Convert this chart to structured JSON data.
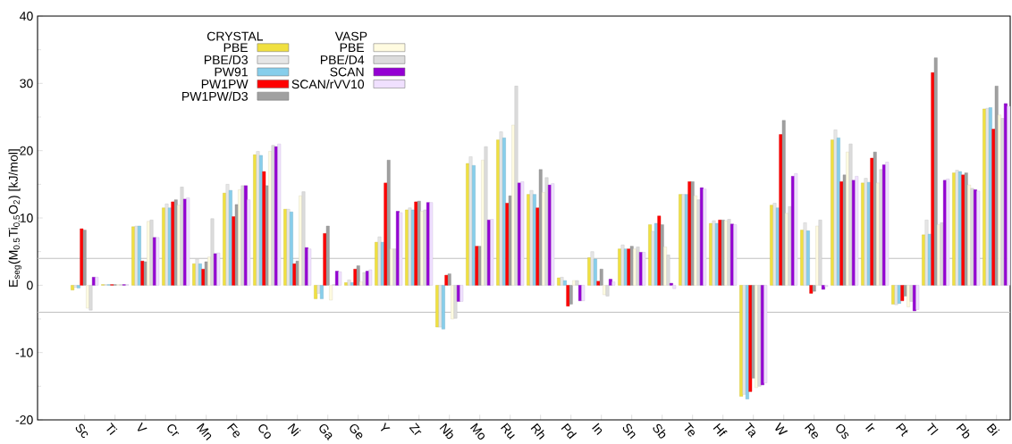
{
  "chart_data": {
    "type": "bar",
    "ylabel": "E$_{seg}$(M$_{0.5}$Ti$_{0.5}$O$_{2}$) [kJ/mol]",
    "categories": [
      "Sc",
      "Ti",
      "V",
      "Cr",
      "Mn",
      "Fe",
      "Co",
      "Ni",
      "Ga",
      "Ge",
      "Y",
      "Zr",
      "Nb",
      "Mo",
      "Ru",
      "Rh",
      "Pd",
      "In",
      "Sn",
      "Sb",
      "Te",
      "Hf",
      "Ta",
      "W",
      "Re",
      "Os",
      "Ir",
      "Pt",
      "Tl",
      "Pb",
      "Bi"
    ],
    "series": [
      {
        "name": "PBE",
        "color": "#f0e040",
        "values": [
          -0.7,
          0.1,
          8.7,
          11.5,
          3.2,
          13.7,
          19.4,
          11.3,
          -2.0,
          0.4,
          6.4,
          11.2,
          -6.2,
          18.1,
          21.6,
          13.5,
          1.1,
          4.1,
          5.4,
          9.0,
          13.5,
          9.2,
          -16.5,
          11.9,
          8.2,
          21.6,
          15.2,
          -2.8,
          7.5,
          16.7,
          26.2
        ]
      },
      {
        "name": "PBE/D3",
        "color": "#e6e6e6",
        "values": [
          -0.3,
          0.1,
          8.8,
          12.1,
          3.9,
          15.0,
          19.9,
          11.3,
          -1.2,
          0.8,
          7.2,
          11.5,
          -6.2,
          19.1,
          22.8,
          14.1,
          1.2,
          5.0,
          6.0,
          8.0,
          13.5,
          9.6,
          -16.2,
          12.2,
          9.3,
          23.1,
          15.9,
          -2.9,
          9.7,
          17.1,
          26.3
        ]
      },
      {
        "name": "PW91",
        "color": "#87ceeb",
        "values": [
          -0.4,
          0.1,
          8.8,
          11.5,
          3.2,
          14.1,
          19.3,
          10.9,
          -2.0,
          0.4,
          6.4,
          11.2,
          -6.5,
          17.8,
          21.9,
          13.5,
          0.7,
          3.9,
          5.4,
          9.2,
          13.5,
          9.2,
          -16.9,
          11.5,
          8.1,
          21.9,
          15.3,
          -2.7,
          7.6,
          16.9,
          26.4
        ]
      },
      {
        "name": "PW1PW",
        "color": "#ff0000",
        "values": [
          8.4,
          0.1,
          3.6,
          12.4,
          2.4,
          10.2,
          16.9,
          3.2,
          7.7,
          2.4,
          15.2,
          12.4,
          1.5,
          5.8,
          12.2,
          11.5,
          -3.1,
          0.6,
          5.4,
          10.3,
          15.4,
          9.7,
          -15.8,
          22.4,
          -1.2,
          15.4,
          18.9,
          -2.3,
          31.6,
          16.4,
          23.2
        ]
      },
      {
        "name": "PW1PW/D3",
        "color": "#a0a0a0",
        "values": [
          8.2,
          0.1,
          3.5,
          12.7,
          3.5,
          12.0,
          14.8,
          3.6,
          8.8,
          2.9,
          18.6,
          12.5,
          1.7,
          5.8,
          13.3,
          17.2,
          -2.8,
          2.4,
          5.8,
          9.0,
          15.4,
          9.7,
          -13.8,
          24.5,
          -0.9,
          16.4,
          19.8,
          -1.6,
          33.8,
          16.7,
          29.6
        ]
      },
      {
        "name": "PBE",
        "color": "#fffbe0",
        "values": [
          -3.4,
          0.1,
          9.5,
          11.9,
          4.2,
          14.2,
          19.9,
          13.3,
          -2.2,
          0.5,
          5.4,
          11.0,
          -5.0,
          18.6,
          23.8,
          13.8,
          0.7,
          -1.4,
          5.4,
          5.7,
          13.3,
          9.6,
          -15.2,
          10.7,
          8.8,
          19.8,
          15.2,
          -3.2,
          9.0,
          14.9,
          25.3
        ]
      },
      {
        "name": "PBE/D4",
        "color": "#dcdcdc",
        "values": [
          -3.7,
          0.1,
          9.7,
          14.6,
          9.9,
          14.8,
          20.8,
          13.9,
          0.1,
          1.9,
          5.4,
          11.2,
          -4.9,
          20.6,
          29.6,
          16.0,
          0.7,
          -1.6,
          5.7,
          4.5,
          12.7,
          9.8,
          -15.0,
          11.7,
          9.7,
          21.0,
          17.2,
          -2.4,
          9.3,
          14.4,
          24.8
        ]
      },
      {
        "name": "SCAN",
        "color": "#9400d3",
        "values": [
          1.2,
          0.1,
          7.1,
          12.8,
          4.7,
          14.8,
          20.6,
          5.6,
          2.1,
          2.1,
          11.0,
          12.3,
          -2.4,
          9.7,
          15.2,
          14.9,
          -2.3,
          0.9,
          4.9,
          0.3,
          14.5,
          9.1,
          -14.8,
          16.2,
          -0.6,
          15.6,
          17.9,
          -3.8,
          15.6,
          14.2,
          27.0
        ]
      },
      {
        "name": "SCAN/rVV10",
        "color": "#f0e0ff",
        "values": [
          1.2,
          0.1,
          7.1,
          13.0,
          4.8,
          12.7,
          21.0,
          5.4,
          2.0,
          2.3,
          10.8,
          12.3,
          -2.4,
          9.8,
          15.4,
          15.1,
          -2.3,
          0.5,
          4.9,
          -0.5,
          14.3,
          9.0,
          -14.5,
          16.6,
          -0.2,
          16.2,
          18.3,
          -3.6,
          15.8,
          14.0,
          26.6
        ]
      }
    ],
    "ylim": [
      -20,
      40
    ],
    "yticks": [
      -20,
      -10,
      0,
      10,
      20,
      30,
      40
    ],
    "ref_lines": [
      {
        "axis": "y",
        "value": 4,
        "color": "#c0c0c0"
      },
      {
        "axis": "y",
        "value": -4,
        "color": "#c0c0c0"
      }
    ],
    "legend": "top left",
    "annotations": [
      "CRYSTAL",
      "VASP"
    ]
  }
}
